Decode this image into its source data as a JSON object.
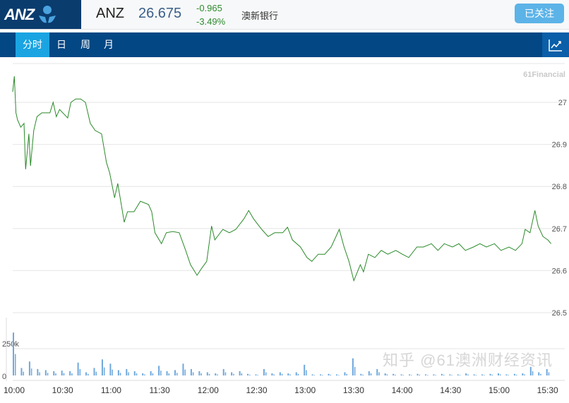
{
  "header": {
    "logo_text": "ANZ",
    "symbol": "ANZ",
    "price": "26.675",
    "change": "-0.965",
    "change_pct": "-3.49%",
    "name": "澳新银行",
    "follow_label": "已关注"
  },
  "tabs": [
    {
      "label": "分时",
      "active": true
    },
    {
      "label": "日"
    },
    {
      "label": "周"
    },
    {
      "label": "月"
    }
  ],
  "chart_icon": "line-chart-icon",
  "brand": "61Financial",
  "watermark": "知乎 @61澳洲财经资讯",
  "colors": {
    "price_line": "#2a8a2a",
    "volume": "#6fa8dc",
    "tab_bar": "#034784",
    "active_tab": "#1aa4e2"
  },
  "chart_data": [
    {
      "type": "line",
      "title": "",
      "xlabel": "",
      "ylabel": "",
      "ylim": [
        26.5,
        27.09
      ],
      "yticks": [
        "27",
        "26.9",
        "26.8",
        "26.7",
        "26.6",
        "26.5"
      ],
      "grid": true,
      "series": [
        {
          "x": [
            "10:00",
            "10:01",
            "10:02",
            "10:03",
            "10:05",
            "10:07",
            "10:08",
            "10:10",
            "10:11",
            "10:13",
            "10:15",
            "10:18",
            "10:23",
            "10:25",
            "10:27",
            "10:29",
            "10:34",
            "10:36",
            "10:39",
            "10:42",
            "10:45",
            "10:48",
            "10:51",
            "10:55",
            "10:58",
            "11:00",
            "11:03",
            "11:05",
            "11:09",
            "11:11",
            "11:15",
            "11:19",
            "11:24",
            "11:26",
            "11:28",
            "11:32",
            "11:35",
            "11:39",
            "11:43",
            "11:47",
            "11:50",
            "11:54",
            "11:57",
            "12:00",
            "12:03",
            "12:05",
            "12:10",
            "12:14",
            "12:18",
            "12:23",
            "12:26",
            "12:29",
            "12:34",
            "12:38",
            "12:42",
            "12:47",
            "12:50",
            "12:53",
            "12:58",
            "13:02",
            "13:05",
            "13:09",
            "13:13",
            "13:17",
            "13:22",
            "13:25",
            "13:28",
            "13:31",
            "13:35",
            "13:37",
            "13:40",
            "13:44",
            "13:48",
            "13:52",
            "13:57",
            "14:01",
            "14:05",
            "14:10",
            "14:14",
            "14:19",
            "14:23",
            "14:27",
            "14:32",
            "14:36",
            "14:40",
            "14:45",
            "14:49",
            "14:53",
            "14:58",
            "15:02",
            "15:07",
            "15:11",
            "15:15",
            "15:17",
            "15:20",
            "15:23",
            "15:25",
            "15:28",
            "15:31",
            "15:33"
          ],
          "values": [
            27.025,
            27.062,
            26.975,
            26.958,
            26.941,
            26.95,
            26.841,
            26.925,
            26.849,
            26.933,
            26.966,
            26.975,
            26.975,
            27.0,
            26.966,
            26.983,
            26.963,
            27.0,
            27.008,
            27.008,
            27.0,
            26.95,
            26.933,
            26.925,
            26.857,
            26.832,
            26.773,
            26.807,
            26.715,
            26.74,
            26.74,
            26.765,
            26.757,
            26.74,
            26.69,
            26.664,
            26.69,
            26.693,
            26.69,
            26.648,
            26.614,
            26.589,
            26.606,
            26.622,
            26.706,
            26.673,
            26.698,
            26.69,
            26.698,
            26.723,
            26.743,
            26.723,
            26.698,
            26.681,
            26.69,
            26.69,
            26.703,
            26.673,
            26.656,
            26.631,
            26.622,
            26.639,
            26.639,
            26.656,
            26.698,
            26.656,
            26.622,
            26.576,
            26.614,
            26.597,
            26.639,
            26.631,
            26.648,
            26.639,
            26.648,
            26.639,
            26.631,
            26.656,
            26.656,
            26.664,
            26.648,
            26.664,
            26.656,
            26.664,
            26.648,
            26.656,
            26.664,
            26.656,
            26.664,
            26.648,
            26.656,
            26.648,
            26.664,
            26.698,
            26.69,
            26.743,
            26.706,
            26.681,
            26.673,
            26.664
          ]
        }
      ]
    },
    {
      "type": "bar",
      "title": "",
      "ylabel": "",
      "yticks": [
        "250k",
        "0"
      ],
      "ylim": [
        0,
        400000
      ],
      "xticks": [
        "10:00",
        "10:30",
        "11:00",
        "11:30",
        "12:00",
        "12:30",
        "13:00",
        "13:30",
        "14:00",
        "14:30",
        "15:00",
        "15:30"
      ],
      "x": [
        "10:00",
        "10:05",
        "10:10",
        "10:15",
        "10:20",
        "10:25",
        "10:30",
        "10:35",
        "10:40",
        "10:45",
        "10:50",
        "10:55",
        "11:00",
        "11:05",
        "11:10",
        "11:15",
        "11:20",
        "11:25",
        "11:30",
        "11:35",
        "11:40",
        "11:45",
        "11:50",
        "11:55",
        "12:00",
        "12:05",
        "12:10",
        "12:15",
        "12:20",
        "12:25",
        "12:30",
        "12:35",
        "12:40",
        "12:45",
        "12:50",
        "12:55",
        "13:00",
        "13:05",
        "13:10",
        "13:15",
        "13:20",
        "13:25",
        "13:30",
        "13:35",
        "13:40",
        "13:45",
        "13:50",
        "13:55",
        "14:00",
        "14:05",
        "14:10",
        "14:15",
        "14:20",
        "14:25",
        "14:30",
        "14:35",
        "14:40",
        "14:45",
        "14:50",
        "14:55",
        "15:00",
        "15:05",
        "15:10",
        "15:15",
        "15:20",
        "15:25",
        "15:30"
      ],
      "values": [
        400000,
        70000,
        130000,
        60000,
        50000,
        40000,
        45000,
        40000,
        120000,
        30000,
        70000,
        150000,
        110000,
        50000,
        60000,
        40000,
        20000,
        40000,
        90000,
        40000,
        50000,
        110000,
        60000,
        40000,
        30000,
        20000,
        60000,
        30000,
        40000,
        15000,
        10000,
        60000,
        20000,
        30000,
        20000,
        30000,
        100000,
        10000,
        10000,
        15000,
        10000,
        30000,
        160000,
        15000,
        40000,
        60000,
        20000,
        15000,
        10000,
        10000,
        15000,
        10000,
        10000,
        15000,
        10000,
        10000,
        20000,
        10000,
        10000,
        15000,
        20000,
        10000,
        15000,
        20000,
        80000,
        30000,
        60000
      ]
    }
  ]
}
